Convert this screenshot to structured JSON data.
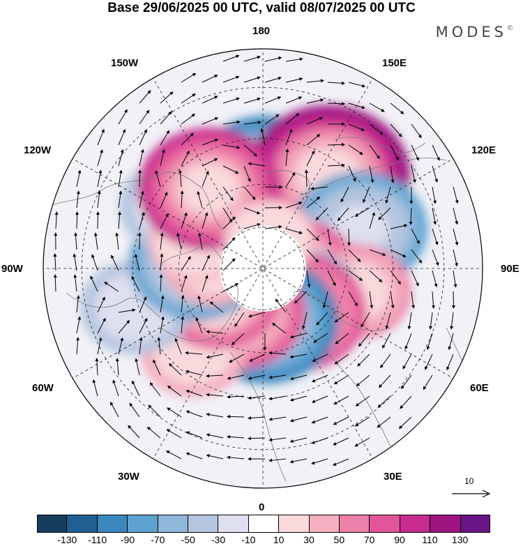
{
  "title": "Base 29/06/2025 00 UTC, valid 08/07/2025 00 UTC",
  "brand": "MODES",
  "brand_mark": "©",
  "longitude_labels": {
    "lon_180": "180",
    "lon_150e": "150E",
    "lon_120e": "120E",
    "lon_90e": "90E",
    "lon_60e": "60E",
    "lon_30e": "30E",
    "lon_0": "0",
    "lon_30w": "30W",
    "lon_60w": "60W",
    "lon_90w": "90W",
    "lon_120w": "120W",
    "lon_150w": "150W"
  },
  "colorbar": {
    "colors": [
      "#173d5e",
      "#1f5f91",
      "#3a87bd",
      "#5fa2d0",
      "#8fb7da",
      "#b5c5df",
      "#dedfef",
      "#ffffff",
      "#f9d9dc",
      "#f4afc0",
      "#ec80a8",
      "#e2559a",
      "#c72b8e",
      "#9e1582",
      "#6a1585"
    ],
    "tick_labels": [
      "-130",
      "-110",
      "-90",
      "-70",
      "-50",
      "-30",
      "-10",
      "10",
      "30",
      "50",
      "70",
      "90",
      "110",
      "130"
    ]
  },
  "reference_vector": {
    "label": "10"
  },
  "map_data": {
    "projection": "north-polar-stereographic",
    "field": "anomaly",
    "anomaly_centers": [
      {
        "lon": 178,
        "lat": 58,
        "value": -95
      },
      {
        "lon": 145,
        "lat": 50,
        "value": 115
      },
      {
        "lon": 112,
        "lat": 53,
        "value": -80
      },
      {
        "lon": 82,
        "lat": 78,
        "value": 70
      },
      {
        "lon": 76,
        "lat": 56,
        "value": 50
      },
      {
        "lon": 54,
        "lat": 72,
        "value": -55
      },
      {
        "lon": 38,
        "lat": 70,
        "value": 85
      },
      {
        "lon": 2,
        "lat": 71,
        "value": -95
      },
      {
        "lon": -30,
        "lat": 72,
        "value": 80
      },
      {
        "lon": -40,
        "lat": 52,
        "value": 45
      },
      {
        "lon": -60,
        "lat": 71,
        "value": 70
      },
      {
        "lon": -73,
        "lat": 44,
        "value": -50
      },
      {
        "lon": -95,
        "lat": 66,
        "value": -80
      },
      {
        "lon": -98,
        "lat": 72,
        "value": 40
      },
      {
        "lon": -125,
        "lat": 52,
        "value": -50
      },
      {
        "lon": -112,
        "lat": 64,
        "value": 30
      },
      {
        "lon": -146,
        "lat": 56,
        "value": 90
      },
      {
        "lon": 168,
        "lat": 79,
        "value": 30
      }
    ]
  }
}
